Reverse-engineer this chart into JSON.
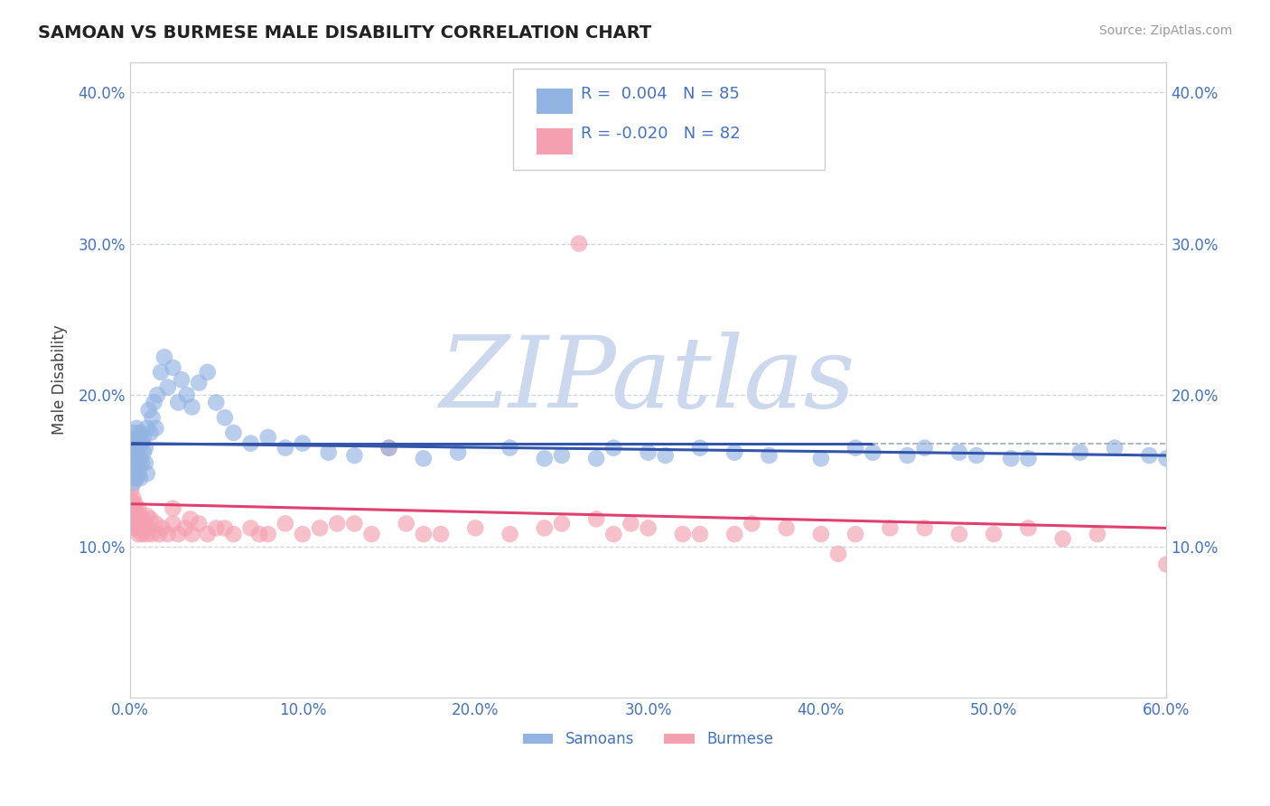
{
  "title": "SAMOAN VS BURMESE MALE DISABILITY CORRELATION CHART",
  "source": "Source: ZipAtlas.com",
  "ylabel_label": "Male Disability",
  "xlim": [
    0.0,
    0.6
  ],
  "ylim": [
    0.0,
    0.42
  ],
  "xticks": [
    0.0,
    0.1,
    0.2,
    0.3,
    0.4,
    0.5,
    0.6
  ],
  "xtick_labels": [
    "0.0%",
    "10.0%",
    "20.0%",
    "30.0%",
    "40.0%",
    "50.0%",
    "60.0%"
  ],
  "yticks": [
    0.1,
    0.2,
    0.3,
    0.4
  ],
  "ytick_labels": [
    "10.0%",
    "20.0%",
    "30.0%",
    "40.0%"
  ],
  "samoan_color": "#92b4e3",
  "burmese_color": "#f4a0b0",
  "samoan_line_color": "#3355aa",
  "burmese_line_color": "#e04070",
  "axis_text_color": "#4472c4",
  "R_samoan": 0.004,
  "N_samoan": 85,
  "R_burmese": -0.02,
  "N_burmese": 82,
  "background_color": "#ffffff",
  "grid_color": "#c8d0dc",
  "watermark": "ZIPatlas",
  "watermark_color": "#ccd8ee",
  "samoan_x": [
    0.001,
    0.001,
    0.001,
    0.001,
    0.002,
    0.002,
    0.002,
    0.002,
    0.002,
    0.003,
    0.003,
    0.003,
    0.003,
    0.003,
    0.003,
    0.004,
    0.004,
    0.004,
    0.004,
    0.005,
    0.005,
    0.005,
    0.005,
    0.006,
    0.006,
    0.006,
    0.007,
    0.007,
    0.008,
    0.008,
    0.009,
    0.009,
    0.01,
    0.01,
    0.011,
    0.012,
    0.013,
    0.014,
    0.015,
    0.016,
    0.018,
    0.02,
    0.022,
    0.025,
    0.028,
    0.03,
    0.033,
    0.036,
    0.04,
    0.045,
    0.05,
    0.055,
    0.06,
    0.07,
    0.08,
    0.09,
    0.1,
    0.115,
    0.13,
    0.15,
    0.17,
    0.19,
    0.22,
    0.25,
    0.27,
    0.3,
    0.33,
    0.37,
    0.4,
    0.43,
    0.46,
    0.49,
    0.52,
    0.55,
    0.57,
    0.59,
    0.6,
    0.35,
    0.28,
    0.45,
    0.51,
    0.48,
    0.42,
    0.31,
    0.24
  ],
  "samoan_y": [
    0.155,
    0.163,
    0.148,
    0.17,
    0.152,
    0.165,
    0.142,
    0.168,
    0.158,
    0.145,
    0.16,
    0.175,
    0.155,
    0.148,
    0.162,
    0.152,
    0.168,
    0.145,
    0.178,
    0.155,
    0.172,
    0.148,
    0.165,
    0.158,
    0.175,
    0.145,
    0.168,
    0.155,
    0.162,
    0.172,
    0.155,
    0.165,
    0.178,
    0.148,
    0.19,
    0.175,
    0.185,
    0.195,
    0.178,
    0.2,
    0.215,
    0.225,
    0.205,
    0.218,
    0.195,
    0.21,
    0.2,
    0.192,
    0.208,
    0.215,
    0.195,
    0.185,
    0.175,
    0.168,
    0.172,
    0.165,
    0.168,
    0.162,
    0.16,
    0.165,
    0.158,
    0.162,
    0.165,
    0.16,
    0.158,
    0.162,
    0.165,
    0.16,
    0.158,
    0.162,
    0.165,
    0.16,
    0.158,
    0.162,
    0.165,
    0.16,
    0.158,
    0.162,
    0.165,
    0.16,
    0.158,
    0.162,
    0.165,
    0.16,
    0.158
  ],
  "burmese_x": [
    0.001,
    0.001,
    0.001,
    0.002,
    0.002,
    0.002,
    0.002,
    0.003,
    0.003,
    0.003,
    0.003,
    0.004,
    0.004,
    0.004,
    0.005,
    0.005,
    0.005,
    0.006,
    0.006,
    0.007,
    0.007,
    0.008,
    0.008,
    0.009,
    0.01,
    0.01,
    0.011,
    0.012,
    0.013,
    0.015,
    0.017,
    0.019,
    0.022,
    0.025,
    0.028,
    0.032,
    0.036,
    0.04,
    0.045,
    0.05,
    0.06,
    0.07,
    0.08,
    0.09,
    0.1,
    0.12,
    0.14,
    0.16,
    0.18,
    0.2,
    0.22,
    0.25,
    0.28,
    0.3,
    0.33,
    0.36,
    0.4,
    0.44,
    0.48,
    0.52,
    0.56,
    0.6,
    0.13,
    0.17,
    0.24,
    0.32,
    0.38,
    0.42,
    0.46,
    0.5,
    0.54,
    0.025,
    0.035,
    0.055,
    0.075,
    0.11,
    0.15,
    0.26,
    0.35,
    0.29,
    0.41,
    0.27
  ],
  "burmese_y": [
    0.13,
    0.12,
    0.138,
    0.125,
    0.115,
    0.132,
    0.118,
    0.122,
    0.112,
    0.128,
    0.118,
    0.112,
    0.122,
    0.115,
    0.118,
    0.108,
    0.125,
    0.112,
    0.12,
    0.115,
    0.108,
    0.118,
    0.11,
    0.112,
    0.12,
    0.108,
    0.112,
    0.118,
    0.108,
    0.115,
    0.108,
    0.112,
    0.108,
    0.115,
    0.108,
    0.112,
    0.108,
    0.115,
    0.108,
    0.112,
    0.108,
    0.112,
    0.108,
    0.115,
    0.108,
    0.115,
    0.108,
    0.115,
    0.108,
    0.112,
    0.108,
    0.115,
    0.108,
    0.112,
    0.108,
    0.115,
    0.108,
    0.112,
    0.108,
    0.112,
    0.108,
    0.088,
    0.115,
    0.108,
    0.112,
    0.108,
    0.112,
    0.108,
    0.112,
    0.108,
    0.105,
    0.125,
    0.118,
    0.112,
    0.108,
    0.112,
    0.165,
    0.3,
    0.108,
    0.115,
    0.095,
    0.118
  ],
  "samoan_line_y_start": 0.168,
  "samoan_line_y_end": 0.16,
  "burmese_line_y_start": 0.128,
  "burmese_line_y_end": 0.112,
  "dashed_line_y": 0.168
}
